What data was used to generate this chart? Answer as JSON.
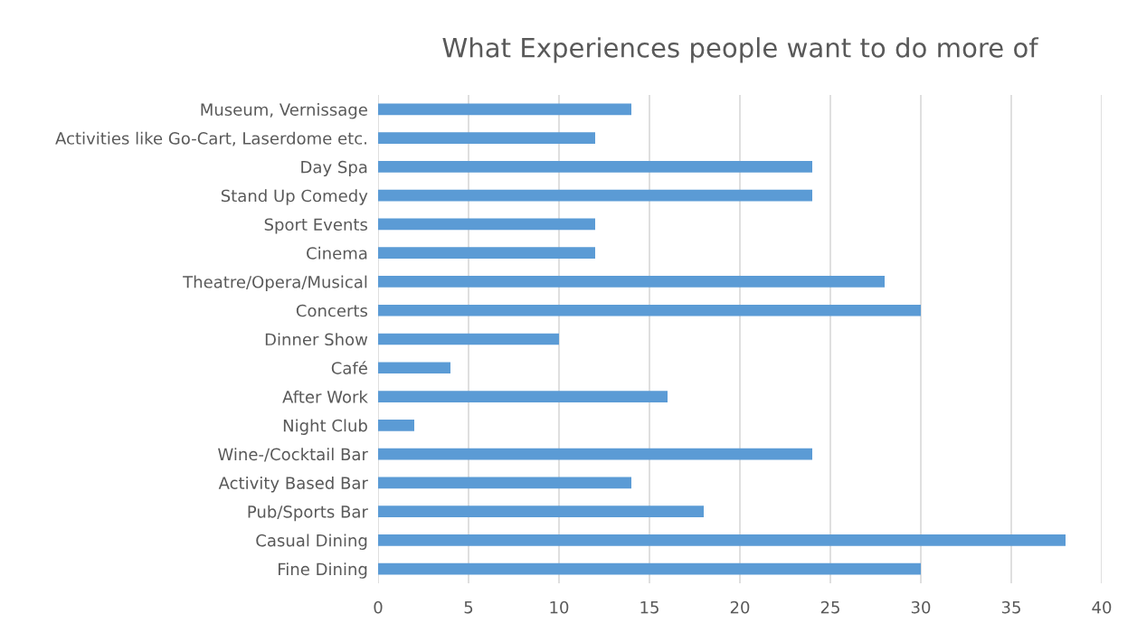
{
  "chart_data": {
    "type": "bar",
    "orientation": "horizontal",
    "title": "What Experiences people want to do more of",
    "categories": [
      "Museum, Vernissage",
      "Activities like Go-Cart, Laserdome etc.",
      "Day Spa",
      "Stand Up Comedy",
      "Sport Events",
      "Cinema",
      "Theatre/Opera/Musical",
      "Concerts",
      "Dinner Show",
      "Café",
      "After Work",
      "Night Club",
      "Wine-/Cocktail Bar",
      "Activity Based Bar",
      "Pub/Sports Bar",
      "Casual Dining",
      "Fine Dining"
    ],
    "values": [
      14,
      12,
      24,
      24,
      12,
      12,
      28,
      30,
      10,
      4,
      16,
      2,
      24,
      14,
      18,
      38,
      30
    ],
    "color": "#5b9bd5",
    "xlim": [
      0,
      40
    ],
    "xticks": [
      0,
      5,
      10,
      15,
      20,
      25,
      30,
      35,
      40
    ],
    "grid": "x"
  }
}
